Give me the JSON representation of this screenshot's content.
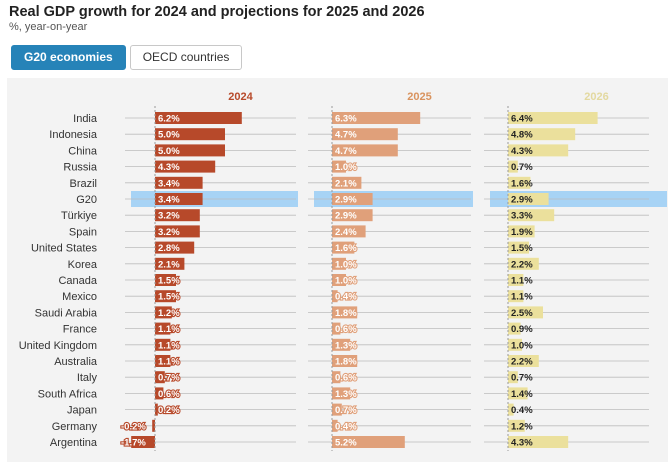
{
  "header": {
    "title": "Real GDP growth for 2024 and projections for 2025 and 2026",
    "subtitle": "%, year-on-year"
  },
  "tabs": [
    {
      "label": "G20 economies",
      "active": true
    },
    {
      "label": "OECD countries",
      "active": false
    }
  ],
  "colors": {
    "highlight": "#a7d3f5",
    "c2024": "#b7492a",
    "c2025": "#e0a07a",
    "c2026": "#ebe09c",
    "gridline": "#bdbdbd",
    "title2024": "#b7492a",
    "title2025": "#d9935e",
    "title2026": "#e3d9a0"
  },
  "chart_data": {
    "type": "bar",
    "orientation": "horizontal",
    "title": "Real GDP growth for 2024 and projections for 2025 and 2026",
    "ylabel": "%, year-on-year",
    "highlight_category": "G20",
    "categories": [
      "India",
      "Indonesia",
      "China",
      "Russia",
      "Brazil",
      "G20",
      "Türkiye",
      "Spain",
      "United States",
      "Korea",
      "Canada",
      "Mexico",
      "Saudi Arabia",
      "France",
      "United Kingdom",
      "Australia",
      "Italy",
      "South Africa",
      "Japan",
      "Germany",
      "Argentina"
    ],
    "series": [
      {
        "name": "2024",
        "color_key": "c2024",
        "values": [
          6.2,
          5.0,
          5.0,
          4.3,
          3.4,
          3.4,
          3.2,
          3.2,
          2.8,
          2.1,
          1.5,
          1.5,
          1.2,
          1.1,
          1.1,
          1.1,
          0.7,
          0.6,
          0.2,
          -0.2,
          -1.7
        ]
      },
      {
        "name": "2025",
        "color_key": "c2025",
        "values": [
          6.3,
          4.7,
          4.7,
          1.0,
          2.1,
          2.9,
          2.9,
          2.4,
          1.6,
          1.0,
          1.0,
          0.4,
          1.8,
          0.6,
          1.3,
          1.8,
          0.6,
          1.3,
          0.7,
          0.4,
          5.2
        ]
      },
      {
        "name": "2026",
        "color_key": "c2026",
        "values": [
          6.4,
          4.8,
          4.3,
          0.7,
          1.6,
          2.9,
          3.3,
          1.9,
          1.5,
          2.2,
          1.1,
          1.1,
          2.5,
          0.9,
          1.0,
          2.2,
          0.7,
          1.4,
          0.4,
          1.2,
          4.3
        ]
      }
    ]
  }
}
